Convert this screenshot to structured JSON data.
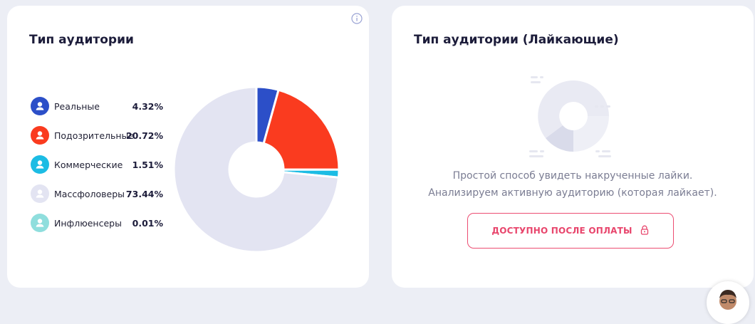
{
  "left_card": {
    "title": "Тип аудитории"
  },
  "right_card": {
    "title": "Тип аудитории (Лайкающие)",
    "description_line_1": "Простой способ увидеть накрученные лайки.",
    "description_line_2": "Анализируем активную аудиторию (которая лайкает).",
    "unlock_button_label": "ДОСТУПНО ПОСЛЕ ОПЛАТЫ"
  },
  "legend": [
    {
      "label": "Реальные",
      "value": "4.32%",
      "color": "#2c4fc8",
      "icon": "user-icon"
    },
    {
      "label": "Подозрительные",
      "value": "20.72%",
      "color": "#fa3b1f",
      "icon": "user-icon"
    },
    {
      "label": "Коммерческие",
      "value": "1.51%",
      "color": "#1cbce4",
      "icon": "user-icon"
    },
    {
      "label": "Массфоловеры",
      "value": "73.44%",
      "color": "#e3e4f2",
      "icon": "user-icon"
    },
    {
      "label": "Инфлюенсеры",
      "value": "0.01%",
      "color": "#8fdedd",
      "icon": "user-icon"
    }
  ],
  "chart_data": {
    "type": "pie",
    "donut": true,
    "categories": [
      "Реальные",
      "Подозрительные",
      "Коммерческие",
      "Массфоловеры",
      "Инфлюенсеры"
    ],
    "values": [
      4.32,
      20.72,
      1.51,
      73.44,
      0.01
    ],
    "unit": "%",
    "colors": [
      "#2c4fc8",
      "#fa3b1f",
      "#1cbce4",
      "#e3e4f2",
      "#8fdedd"
    ],
    "legend_position": "left"
  },
  "colors": {
    "background": "#eceef5",
    "card": "#ffffff",
    "title": "#1c1c3a",
    "accent": "#e8456c",
    "muted_text": "#7b7d93"
  }
}
